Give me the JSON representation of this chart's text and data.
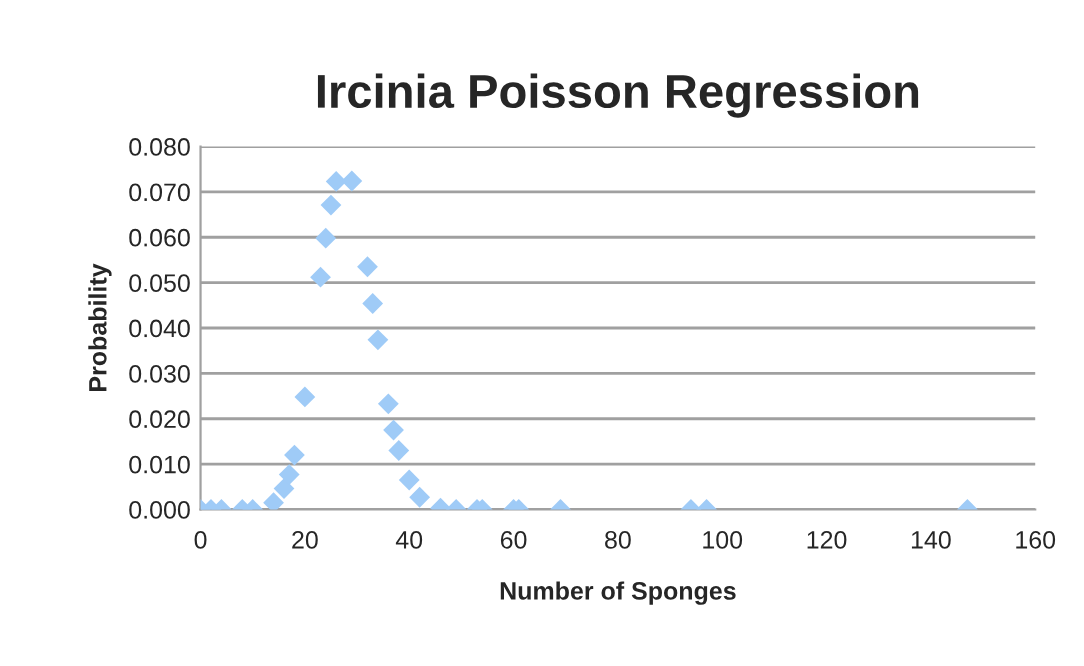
{
  "chart_data": {
    "type": "scatter",
    "title": "Ircinia Poisson Regression",
    "xlabel": "Number of Sponges",
    "ylabel": "Probability",
    "x": [
      0,
      2,
      4,
      8,
      10,
      14,
      16,
      17,
      18,
      20,
      23,
      24,
      25,
      26,
      29,
      32,
      33,
      34,
      36,
      37,
      38,
      40,
      42,
      46,
      49,
      53,
      54,
      60,
      61,
      69,
      94,
      97,
      147
    ],
    "series": [
      {
        "color": "#9fcbf7",
        "values": [
          0,
          0,
          0,
          0,
          0,
          0.0015,
          0.0046,
          0.0077,
          0.012,
          0.0248,
          0.0512,
          0.0598,
          0.0671,
          0.0723,
          0.0724,
          0.0535,
          0.0454,
          0.0374,
          0.0233,
          0.0175,
          0.013,
          0.0065,
          0.0027,
          0.0003,
          0,
          0,
          0,
          0,
          0,
          0,
          0,
          0,
          0
        ]
      }
    ],
    "xlim": [
      0,
      160
    ],
    "xticks": [
      0,
      20,
      40,
      60,
      80,
      100,
      120,
      140,
      160
    ],
    "ylim": [
      0,
      0.08
    ],
    "yticks": [
      {
        "value": 0,
        "label": "0.000"
      },
      {
        "value": 0.01,
        "label": "0.010"
      },
      {
        "value": 0.02,
        "label": "0.020"
      },
      {
        "value": 0.03,
        "label": "0.030"
      },
      {
        "value": 0.04,
        "label": "0.040"
      },
      {
        "value": 0.05,
        "label": "0.050"
      },
      {
        "value": 0.06,
        "label": "0.060"
      },
      {
        "value": 0.07,
        "label": "0.070"
      },
      {
        "value": 0.08,
        "label": "0.080"
      }
    ],
    "grid": "y",
    "marker": "diamond",
    "legend": false
  }
}
